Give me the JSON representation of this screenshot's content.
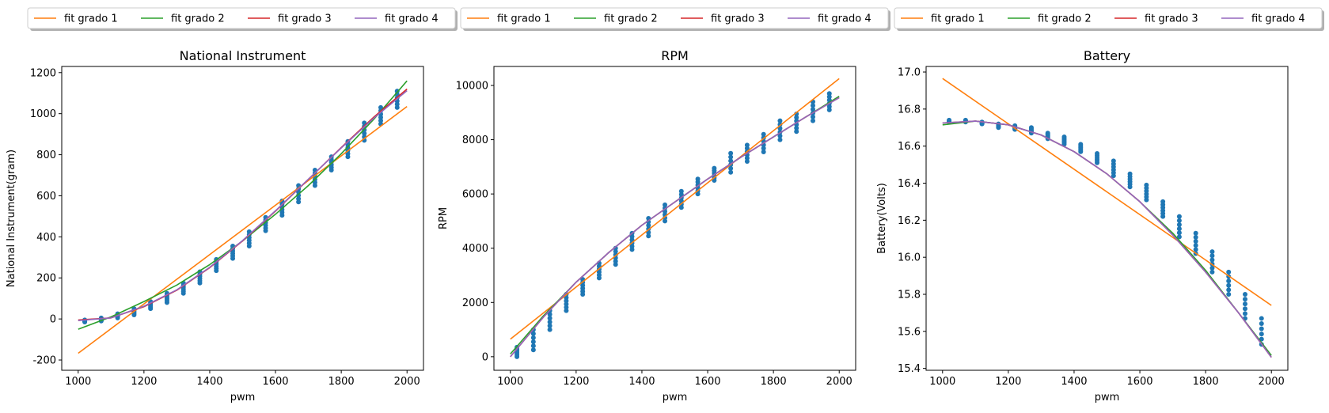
{
  "chart_data": [
    {
      "type": "scatter",
      "title": "National Instrument",
      "xlabel": "pwm",
      "ylabel": "National Instrument(gram)",
      "xlim": [
        950,
        2050
      ],
      "ylim": [
        -250,
        1230
      ],
      "xticks": [
        1000,
        1200,
        1400,
        1600,
        1800,
        2000
      ],
      "yticks": [
        -200,
        0,
        200,
        400,
        600,
        800,
        1000,
        1200
      ],
      "grid": false,
      "legend": {
        "position": "top",
        "ncol": 4,
        "entries": [
          "fit grado 1",
          "fit grado 2",
          "fit grado 3",
          "fit grado 4"
        ]
      },
      "scatter": {
        "color": "#1f77b4",
        "points": [
          {
            "x": 1020,
            "ymin": -15,
            "ymax": -5
          },
          {
            "x": 1070,
            "ymin": -10,
            "ymax": 5
          },
          {
            "x": 1120,
            "ymin": 5,
            "ymax": 25
          },
          {
            "x": 1170,
            "ymin": 20,
            "ymax": 50
          },
          {
            "x": 1220,
            "ymin": 50,
            "ymax": 85
          },
          {
            "x": 1270,
            "ymin": 80,
            "ymax": 125
          },
          {
            "x": 1320,
            "ymin": 125,
            "ymax": 175
          },
          {
            "x": 1370,
            "ymin": 175,
            "ymax": 230
          },
          {
            "x": 1420,
            "ymin": 235,
            "ymax": 290
          },
          {
            "x": 1470,
            "ymin": 295,
            "ymax": 355
          },
          {
            "x": 1520,
            "ymin": 355,
            "ymax": 425
          },
          {
            "x": 1570,
            "ymin": 430,
            "ymax": 495
          },
          {
            "x": 1620,
            "ymin": 505,
            "ymax": 575
          },
          {
            "x": 1670,
            "ymin": 570,
            "ymax": 650
          },
          {
            "x": 1720,
            "ymin": 650,
            "ymax": 725
          },
          {
            "x": 1770,
            "ymin": 725,
            "ymax": 790
          },
          {
            "x": 1820,
            "ymin": 790,
            "ymax": 865
          },
          {
            "x": 1870,
            "ymin": 870,
            "ymax": 955
          },
          {
            "x": 1920,
            "ymin": 950,
            "ymax": 1030
          },
          {
            "x": 1970,
            "ymin": 1030,
            "ymax": 1110
          }
        ]
      },
      "series": [
        {
          "name": "fit grado 1",
          "color": "#ff7f0e",
          "x": [
            1000,
            2000
          ],
          "y": [
            -167,
            1035
          ]
        },
        {
          "name": "fit grado 2",
          "color": "#2ca02c",
          "x": [
            1000,
            1100,
            1200,
            1300,
            1400,
            1500,
            1600,
            1700,
            1800,
            1900,
            2000
          ],
          "y": [
            -50,
            10,
            85,
            165,
            265,
            380,
            510,
            650,
            805,
            975,
            1160
          ]
        },
        {
          "name": "fit grado 3",
          "color": "#d62728",
          "x": [
            1000,
            1100,
            1200,
            1300,
            1400,
            1500,
            1600,
            1700,
            1800,
            1900,
            2000
          ],
          "y": [
            -5,
            5,
            60,
            140,
            250,
            380,
            525,
            680,
            835,
            985,
            1120
          ]
        },
        {
          "name": "fit grado 4",
          "color": "#9467bd",
          "x": [
            1000,
            1100,
            1200,
            1300,
            1400,
            1500,
            1600,
            1700,
            1800,
            1900,
            2000
          ],
          "y": [
            -8,
            5,
            62,
            142,
            252,
            382,
            527,
            681,
            833,
            980,
            1112
          ]
        }
      ]
    },
    {
      "type": "scatter",
      "title": "RPM",
      "xlabel": "pwm",
      "ylabel": "RPM",
      "xlim": [
        950,
        2050
      ],
      "ylim": [
        -500,
        10700
      ],
      "xticks": [
        1000,
        1200,
        1400,
        1600,
        1800,
        2000
      ],
      "yticks": [
        0,
        2000,
        4000,
        6000,
        8000,
        10000
      ],
      "grid": false,
      "legend": {
        "position": "top",
        "ncol": 4,
        "entries": [
          "fit grado 1",
          "fit grado 2",
          "fit grado 3",
          "fit grado 4"
        ]
      },
      "scatter": {
        "color": "#1f77b4",
        "points": [
          {
            "x": 1020,
            "ymin": 0,
            "ymax": 350
          },
          {
            "x": 1070,
            "ymin": 250,
            "ymax": 1000
          },
          {
            "x": 1120,
            "ymin": 1000,
            "ymax": 1700
          },
          {
            "x": 1170,
            "ymin": 1700,
            "ymax": 2300
          },
          {
            "x": 1220,
            "ymin": 2300,
            "ymax": 2850
          },
          {
            "x": 1270,
            "ymin": 2900,
            "ymax": 3450
          },
          {
            "x": 1320,
            "ymin": 3400,
            "ymax": 4000
          },
          {
            "x": 1370,
            "ymin": 3950,
            "ymax": 4550
          },
          {
            "x": 1420,
            "ymin": 4450,
            "ymax": 5100
          },
          {
            "x": 1470,
            "ymin": 5000,
            "ymax": 5600
          },
          {
            "x": 1520,
            "ymin": 5500,
            "ymax": 6100
          },
          {
            "x": 1570,
            "ymin": 6000,
            "ymax": 6550
          },
          {
            "x": 1620,
            "ymin": 6500,
            "ymax": 6950
          },
          {
            "x": 1670,
            "ymin": 6800,
            "ymax": 7500
          },
          {
            "x": 1720,
            "ymin": 7200,
            "ymax": 7800
          },
          {
            "x": 1770,
            "ymin": 7550,
            "ymax": 8200
          },
          {
            "x": 1820,
            "ymin": 8000,
            "ymax": 8700
          },
          {
            "x": 1870,
            "ymin": 8300,
            "ymax": 8950
          },
          {
            "x": 1920,
            "ymin": 8700,
            "ymax": 9400
          },
          {
            "x": 1970,
            "ymin": 9100,
            "ymax": 9700
          }
        ]
      },
      "series": [
        {
          "name": "fit grado 1",
          "color": "#ff7f0e",
          "x": [
            1000,
            2000
          ],
          "y": [
            650,
            10250
          ]
        },
        {
          "name": "fit grado 2",
          "color": "#2ca02c",
          "x": [
            1000,
            1100,
            1200,
            1300,
            1400,
            1500,
            1600,
            1700,
            1800,
            1900,
            2000
          ],
          "y": [
            100,
            1500,
            2750,
            3850,
            4850,
            5700,
            6550,
            7350,
            8100,
            8850,
            9600
          ]
        },
        {
          "name": "fit grado 3",
          "color": "#d62728",
          "x": [
            1000,
            1100,
            1200,
            1300,
            1400,
            1500,
            1600,
            1700,
            1800,
            1900,
            2000
          ],
          "y": [
            0,
            1450,
            2750,
            3850,
            4850,
            5700,
            6550,
            7350,
            8100,
            8850,
            9550
          ]
        },
        {
          "name": "fit grado 4",
          "color": "#9467bd",
          "x": [
            1000,
            1100,
            1200,
            1300,
            1400,
            1500,
            1600,
            1700,
            1800,
            1900,
            2000
          ],
          "y": [
            0,
            1450,
            2750,
            3850,
            4850,
            5700,
            6550,
            7350,
            8100,
            8850,
            9550
          ]
        }
      ]
    },
    {
      "type": "scatter",
      "title": "Battery",
      "xlabel": "pwm",
      "ylabel": "Battery(Volts)",
      "xlim": [
        950,
        2050
      ],
      "ylim": [
        15.39,
        17.03
      ],
      "xticks": [
        1000,
        1200,
        1400,
        1600,
        1800,
        2000
      ],
      "yticks": [
        15.4,
        15.6,
        15.8,
        16.0,
        16.2,
        16.4,
        16.6,
        16.8,
        17.0
      ],
      "grid": false,
      "legend": {
        "position": "top",
        "ncol": 4,
        "entries": [
          "fit grado 1",
          "fit grado 2",
          "fit grado 3",
          "fit grado 4"
        ]
      },
      "scatter": {
        "color": "#1f77b4",
        "points": [
          {
            "x": 1020,
            "ymin": 16.73,
            "ymax": 16.74
          },
          {
            "x": 1070,
            "ymin": 16.73,
            "ymax": 16.74
          },
          {
            "x": 1120,
            "ymin": 16.72,
            "ymax": 16.73
          },
          {
            "x": 1170,
            "ymin": 16.7,
            "ymax": 16.72
          },
          {
            "x": 1220,
            "ymin": 16.69,
            "ymax": 16.71
          },
          {
            "x": 1270,
            "ymin": 16.67,
            "ymax": 16.7
          },
          {
            "x": 1320,
            "ymin": 16.64,
            "ymax": 16.67
          },
          {
            "x": 1370,
            "ymin": 16.61,
            "ymax": 16.65
          },
          {
            "x": 1420,
            "ymin": 16.57,
            "ymax": 16.61
          },
          {
            "x": 1470,
            "ymin": 16.51,
            "ymax": 16.56
          },
          {
            "x": 1520,
            "ymin": 16.44,
            "ymax": 16.52
          },
          {
            "x": 1570,
            "ymin": 16.38,
            "ymax": 16.45
          },
          {
            "x": 1620,
            "ymin": 16.31,
            "ymax": 16.39
          },
          {
            "x": 1670,
            "ymin": 16.22,
            "ymax": 16.3
          },
          {
            "x": 1720,
            "ymin": 16.11,
            "ymax": 16.22
          },
          {
            "x": 1770,
            "ymin": 16.02,
            "ymax": 16.13
          },
          {
            "x": 1820,
            "ymin": 15.92,
            "ymax": 16.03
          },
          {
            "x": 1870,
            "ymin": 15.8,
            "ymax": 15.92
          },
          {
            "x": 1920,
            "ymin": 15.67,
            "ymax": 15.8
          },
          {
            "x": 1970,
            "ymin": 15.53,
            "ymax": 15.67
          }
        ]
      },
      "series": [
        {
          "name": "fit grado 1",
          "color": "#ff7f0e",
          "x": [
            1000,
            2000
          ],
          "y": [
            16.965,
            15.74
          ]
        },
        {
          "name": "fit grado 2",
          "color": "#2ca02c",
          "x": [
            1000,
            1100,
            1200,
            1300,
            1400,
            1500,
            1600,
            1700,
            1800,
            1900,
            2000
          ],
          "y": [
            16.715,
            16.735,
            16.715,
            16.66,
            16.57,
            16.45,
            16.3,
            16.13,
            15.93,
            15.7,
            15.47
          ]
        },
        {
          "name": "fit grado 3",
          "color": "#d62728",
          "x": [
            1000,
            1100,
            1200,
            1300,
            1400,
            1500,
            1600,
            1700,
            1800,
            1900,
            2000
          ],
          "y": [
            16.725,
            16.735,
            16.715,
            16.66,
            16.57,
            16.45,
            16.3,
            16.12,
            15.92,
            15.7,
            15.46
          ]
        },
        {
          "name": "fit grado 4",
          "color": "#9467bd",
          "x": [
            1000,
            1100,
            1200,
            1300,
            1400,
            1500,
            1600,
            1700,
            1800,
            1900,
            2000
          ],
          "y": [
            16.725,
            16.735,
            16.715,
            16.66,
            16.57,
            16.45,
            16.3,
            16.12,
            15.92,
            15.7,
            15.46
          ]
        }
      ]
    }
  ]
}
